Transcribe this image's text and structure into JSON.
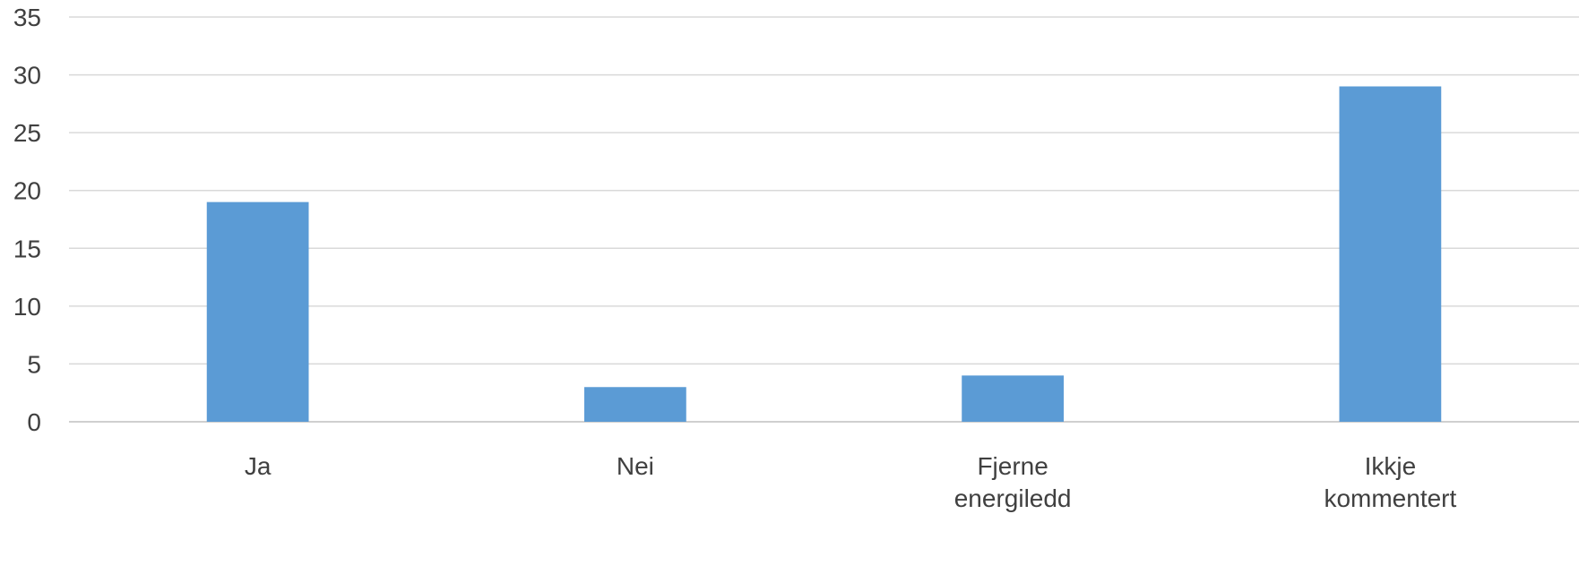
{
  "chart_data": {
    "type": "bar",
    "title": "",
    "xlabel": "",
    "ylabel": "",
    "categories": [
      [
        "Ja"
      ],
      [
        "Nei"
      ],
      [
        "Fjerne",
        "energiledd"
      ],
      [
        "Ikkje",
        "kommentert"
      ]
    ],
    "values": [
      19,
      3,
      4,
      29
    ],
    "ylim": [
      0,
      35
    ],
    "yticks": [
      "0",
      "5",
      "10",
      "15",
      "20",
      "25",
      "30",
      "35"
    ],
    "grid": true,
    "legend": "none",
    "bar_color": "#5b9bd5"
  }
}
